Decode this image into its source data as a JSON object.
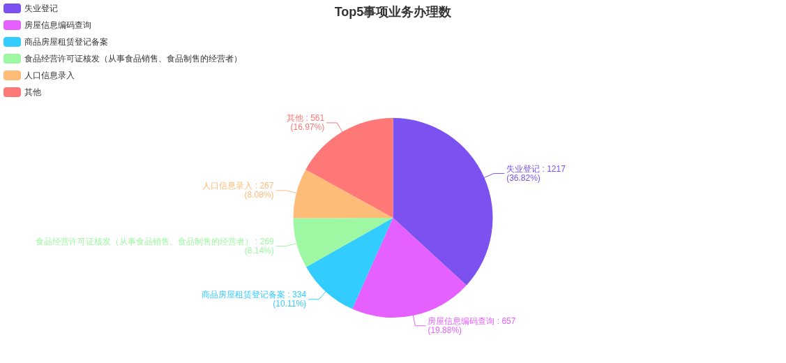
{
  "chart_data": {
    "type": "pie",
    "title": "Top5事项业务办理数",
    "categories": [
      "失业登记",
      "房屋信息编码查询",
      "商品房屋租赁登记备案",
      "食品经营许可证核发（从事食品销售、食品制售的经营者）",
      "人口信息录入",
      "其他"
    ],
    "values": [
      1217,
      657,
      334,
      269,
      267,
      561
    ],
    "colors": [
      "#7b52f0",
      "#e65fff",
      "#33ccff",
      "#9ef7a2",
      "#ffbb78",
      "#ff7878"
    ],
    "value_labels": [
      "失业登记 : 1217\n(36.82%)",
      "房屋信息编码查询 : 657\n(19.88%)",
      "商品房屋租赁登记备案 : 334\n(10.11%)",
      "食品经营许可证核发（从事食品销售、食品制售的经营者） : 269\n(8.14%)",
      "人口信息录入 : 267\n(8.08%)",
      "其他 : 561\n(16.97%)"
    ],
    "legend": "top left"
  }
}
